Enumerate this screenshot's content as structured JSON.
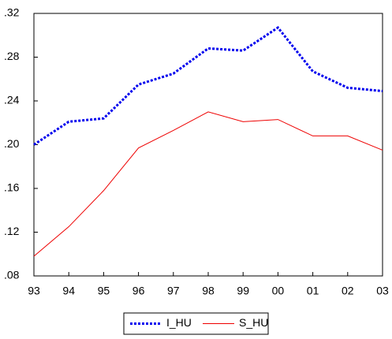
{
  "chart_data": {
    "type": "line",
    "categories": [
      "93",
      "94",
      "95",
      "96",
      "97",
      "98",
      "99",
      "00",
      "01",
      "02",
      "03"
    ],
    "series": [
      {
        "name": "I_HU",
        "color": "#0000ee",
        "line_style": "dotted",
        "values": [
          0.2,
          0.221,
          0.224,
          0.255,
          0.265,
          0.288,
          0.286,
          0.307,
          0.267,
          0.252,
          0.249
        ]
      },
      {
        "name": "S_HU",
        "color": "#ee0000",
        "line_style": "solid",
        "values": [
          0.098,
          0.125,
          0.158,
          0.197,
          0.213,
          0.23,
          0.221,
          0.223,
          0.208,
          0.208,
          0.195
        ]
      }
    ],
    "ylim": [
      0.08,
      0.32
    ],
    "yticks": [
      {
        "value": 0.08,
        "label": ".08"
      },
      {
        "value": 0.12,
        "label": ".12"
      },
      {
        "value": 0.16,
        "label": ".16"
      },
      {
        "value": 0.2,
        "label": ".20"
      },
      {
        "value": 0.24,
        "label": ".24"
      },
      {
        "value": 0.28,
        "label": ".28"
      },
      {
        "value": 0.32,
        "label": ".32"
      }
    ],
    "legend": "bottom"
  }
}
